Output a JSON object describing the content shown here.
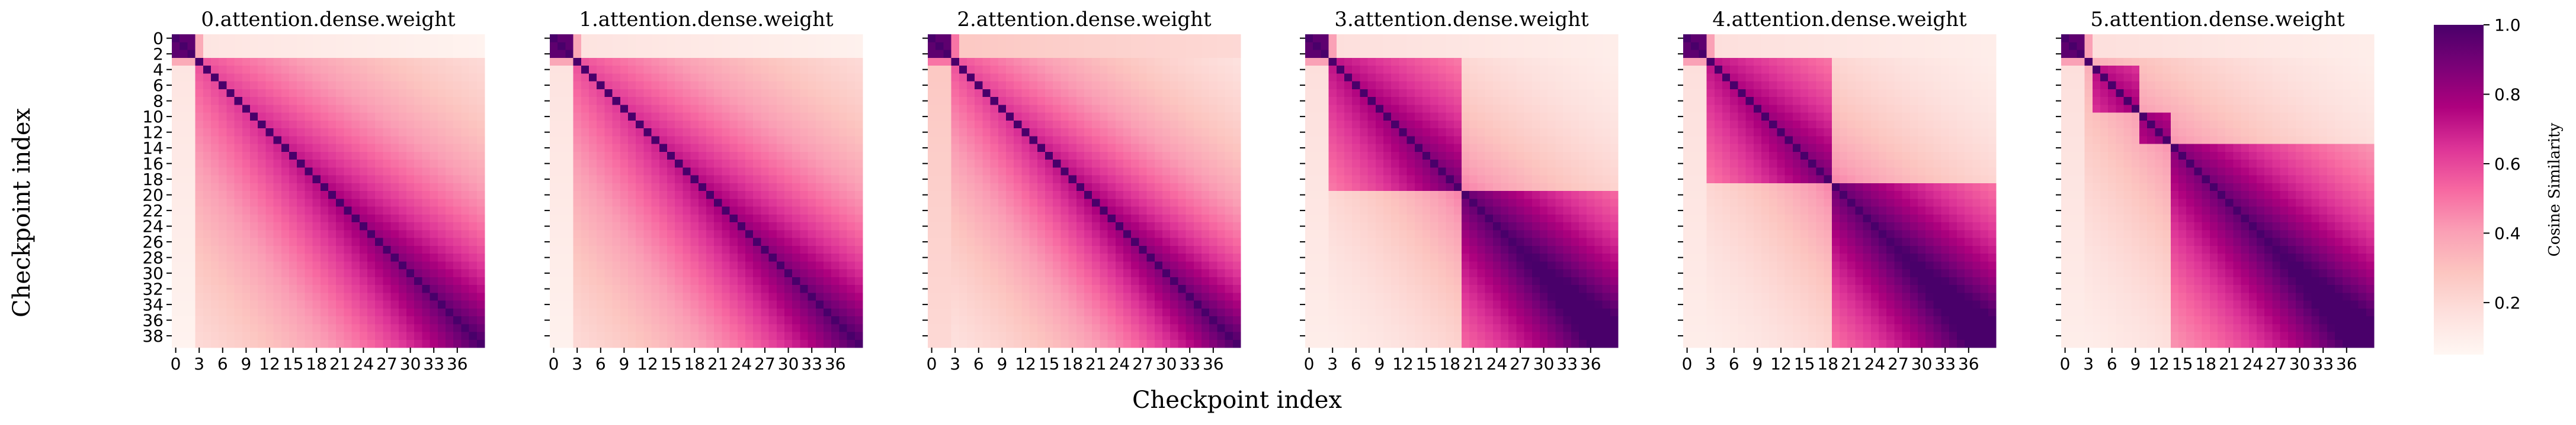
{
  "figure": {
    "shared_xlabel": "Checkpoint index",
    "shared_ylabel": "Checkpoint index"
  },
  "colorbar": {
    "label": "Cosine Similarity",
    "ticks": [
      "1.0",
      "0.8",
      "0.6",
      "0.4",
      "0.2"
    ],
    "vmin": 0.05,
    "vmax": 1.0,
    "colormap": "RdPu",
    "colors": [
      "#fff7f3",
      "#fde0dd",
      "#fcc5c0",
      "#fa9fb5",
      "#f768a1",
      "#dd3497",
      "#ae017e",
      "#7a0177",
      "#49006a"
    ]
  },
  "chart_data": [
    {
      "type": "heatmap",
      "title": "0.attention.dense.weight",
      "size": 40,
      "x_ticks": [
        "0",
        "3",
        "6",
        "9",
        "12",
        "15",
        "18",
        "21",
        "24",
        "27",
        "30",
        "33",
        "36"
      ],
      "y_ticks": [
        "0",
        "2",
        "4",
        "6",
        "8",
        "10",
        "12",
        "14",
        "16",
        "18",
        "20",
        "22",
        "24",
        "26",
        "28",
        "30",
        "32",
        "34",
        "36",
        "38"
      ],
      "early_checkpoints": [
        0,
        1,
        2
      ],
      "early_similarity": 0.07,
      "block_boundaries": [],
      "decay_rate": 0.045
    },
    {
      "type": "heatmap",
      "title": "1.attention.dense.weight",
      "size": 40,
      "x_ticks": [
        "0",
        "3",
        "6",
        "9",
        "12",
        "15",
        "18",
        "21",
        "24",
        "27",
        "30",
        "33",
        "36"
      ],
      "early_checkpoints": [
        0,
        1,
        2
      ],
      "early_similarity": 0.08,
      "block_boundaries": [],
      "decay_rate": 0.045
    },
    {
      "type": "heatmap",
      "title": "2.attention.dense.weight",
      "size": 40,
      "x_ticks": [
        "0",
        "3",
        "6",
        "9",
        "12",
        "15",
        "18",
        "21",
        "24",
        "27",
        "30",
        "33",
        "36"
      ],
      "early_checkpoints": [
        0,
        1,
        2
      ],
      "early_similarity": 0.2,
      "block_boundaries": [],
      "decay_rate": 0.05
    },
    {
      "type": "heatmap",
      "title": "3.attention.dense.weight",
      "size": 40,
      "x_ticks": [
        "0",
        "3",
        "6",
        "9",
        "12",
        "15",
        "18",
        "21",
        "24",
        "27",
        "30",
        "33",
        "36"
      ],
      "early_checkpoints": [
        0,
        1,
        2
      ],
      "early_similarity": 0.1,
      "block_boundaries": [
        20
      ],
      "decay_rate": 0.05
    },
    {
      "type": "heatmap",
      "title": "4.attention.dense.weight",
      "size": 40,
      "x_ticks": [
        "0",
        "3",
        "6",
        "9",
        "12",
        "15",
        "18",
        "21",
        "24",
        "27",
        "30",
        "33",
        "36"
      ],
      "early_checkpoints": [
        0,
        1,
        2
      ],
      "early_similarity": 0.1,
      "block_boundaries": [
        19
      ],
      "decay_rate": 0.05
    },
    {
      "type": "heatmap",
      "title": "5.attention.dense.weight",
      "size": 40,
      "x_ticks": [
        "0",
        "3",
        "6",
        "9",
        "12",
        "15",
        "18",
        "21",
        "24",
        "27",
        "30",
        "33",
        "36"
      ],
      "early_checkpoints": [
        0,
        1,
        2
      ],
      "early_similarity": 0.1,
      "block_boundaries": [
        4,
        10,
        14
      ],
      "decay_rate": 0.05
    }
  ]
}
